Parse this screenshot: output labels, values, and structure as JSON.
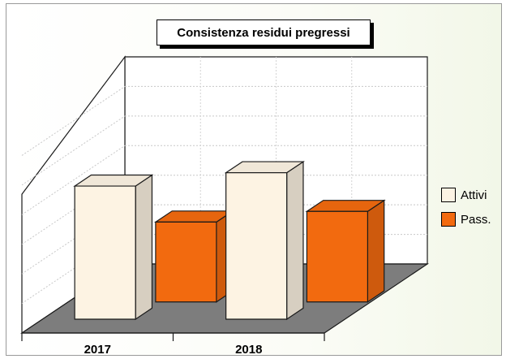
{
  "chart_data": {
    "type": "bar",
    "title": "Consistenza residui pregressi",
    "categories": [
      "2017",
      "2018"
    ],
    "series": [
      {
        "name": "Attivi",
        "values": [
          100,
          110
        ],
        "color": "#fdf3e3"
      },
      {
        "name": "Pass.",
        "values": [
          60,
          68
        ],
        "color": "#f26a0f"
      }
    ],
    "ylim": [
      0,
      140
    ],
    "grid": true,
    "style": "3d",
    "legend_position": "right",
    "xlabel": "",
    "ylabel": ""
  }
}
